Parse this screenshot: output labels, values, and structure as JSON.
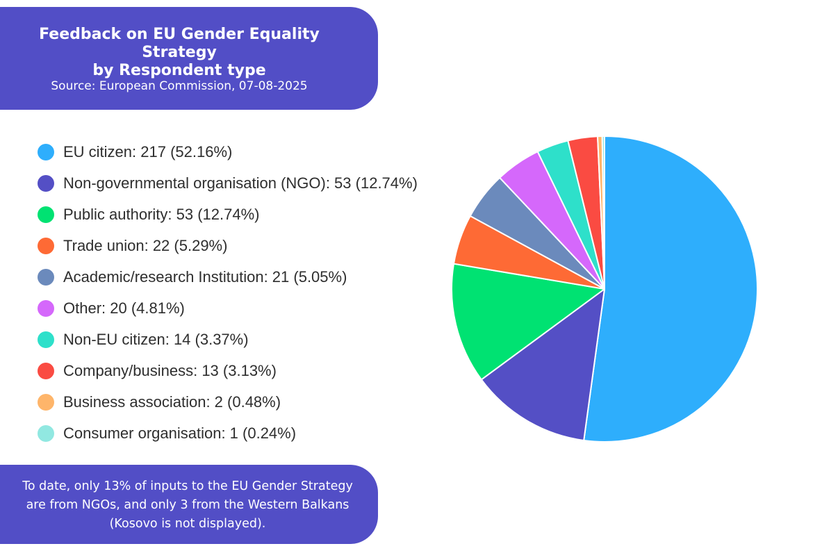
{
  "header": {
    "title": "Feedback on EU Gender Equality Strategy\nby Respondent type",
    "source": "Source: European Commission, 07-08-2025"
  },
  "footer": {
    "text": "To date, only 13% of inputs to the EU Gender Strategy\nare from NGOs, and only 3 from the Western Balkans\n(Kosovo is not displayed)."
  },
  "colors": {
    "card_background": "#524ec6",
    "card_text": "#ffffff"
  },
  "chart_data": {
    "type": "pie",
    "title": "Feedback on EU Gender Equality Strategy by Respondent type",
    "legend_position": "left",
    "start_angle": "12 o'clock, clockwise",
    "slices": [
      {
        "label": "EU citizen: 217 (52.16%)",
        "category": "EU citizen",
        "value": 217,
        "percent": 52.16,
        "color": "#2eaefc"
      },
      {
        "label": "Non-governmental organisation (NGO): 53 (12.74%)",
        "category": "Non-governmental organisation (NGO)",
        "value": 53,
        "percent": 12.74,
        "color": "#544fc5"
      },
      {
        "label": "Public authority: 53 (12.74%)",
        "category": "Public authority",
        "value": 53,
        "percent": 12.74,
        "color": "#00e272"
      },
      {
        "label": "Trade union: 22 (5.29%)",
        "category": "Trade union",
        "value": 22,
        "percent": 5.29,
        "color": "#fe6a35"
      },
      {
        "label": "Academic/research Institution: 21 (5.05%)",
        "category": "Academic/research Institution",
        "value": 21,
        "percent": 5.05,
        "color": "#6b8abc"
      },
      {
        "label": "Other: 20 (4.81%)",
        "category": "Other",
        "value": 20,
        "percent": 4.81,
        "color": "#d568fb"
      },
      {
        "label": "Non-EU citizen: 14 (3.37%)",
        "category": "Non-EU citizen",
        "value": 14,
        "percent": 3.37,
        "color": "#2ee0ca"
      },
      {
        "label": "Company/business: 13 (3.13%)",
        "category": "Company/business",
        "value": 13,
        "percent": 3.13,
        "color": "#fa4b42"
      },
      {
        "label": "Business association: 2 (0.48%)",
        "category": "Business association",
        "value": 2,
        "percent": 0.48,
        "color": "#feb56a"
      },
      {
        "label": "Consumer organisation: 1 (0.24%)",
        "category": "Consumer organisation",
        "value": 1,
        "percent": 0.24,
        "color": "#91e8e1"
      }
    ]
  }
}
